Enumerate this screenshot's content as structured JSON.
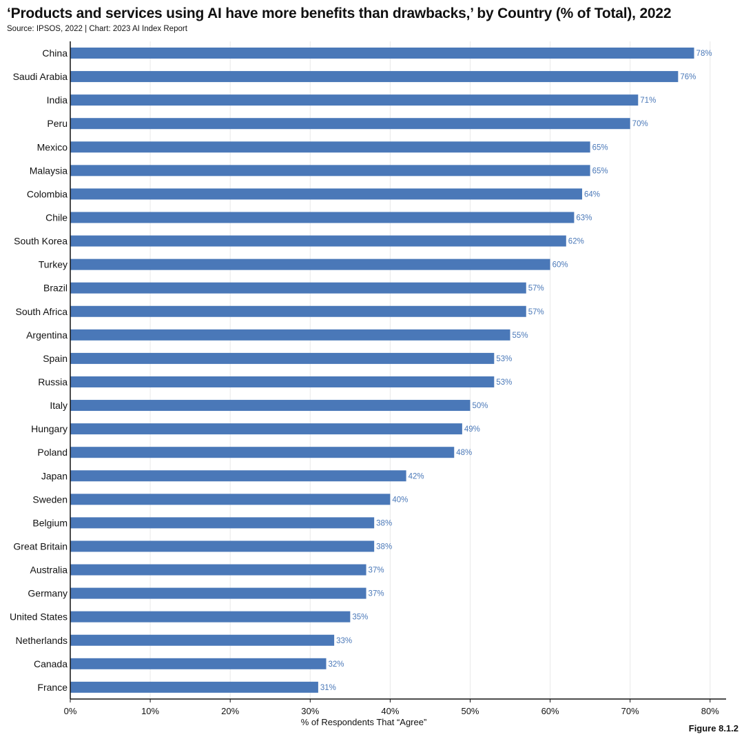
{
  "header": {
    "title": "‘Products and services using AI have more benefits than drawbacks,’ by Country (% of Total), 2022",
    "source": "Source: IPSOS, 2022 | Chart: 2023 AI Index Report"
  },
  "figure_label": "Figure 8.1.2",
  "colors": {
    "bar": "#4a78b8",
    "value_label": "#4a78b8",
    "grid": "#e8e8e8",
    "axis": "#111111"
  },
  "chart_data": {
    "type": "bar",
    "orientation": "horizontal",
    "categories": [
      "China",
      "Saudi Arabia",
      "India",
      "Peru",
      "Mexico",
      "Malaysia",
      "Colombia",
      "Chile",
      "South Korea",
      "Turkey",
      "Brazil",
      "South Africa",
      "Argentina",
      "Spain",
      "Russia",
      "Italy",
      "Hungary",
      "Poland",
      "Japan",
      "Sweden",
      "Belgium",
      "Great Britain",
      "Australia",
      "Germany",
      "United States",
      "Netherlands",
      "Canada",
      "France"
    ],
    "values": [
      78,
      76,
      71,
      70,
      65,
      65,
      64,
      63,
      62,
      60,
      57,
      57,
      55,
      53,
      53,
      50,
      49,
      48,
      42,
      40,
      38,
      38,
      37,
      37,
      35,
      33,
      32,
      31
    ],
    "value_labels": [
      "78%",
      "76%",
      "71%",
      "70%",
      "65%",
      "65%",
      "64%",
      "63%",
      "62%",
      "60%",
      "57%",
      "57%",
      "55%",
      "53%",
      "53%",
      "50%",
      "49%",
      "48%",
      "42%",
      "40%",
      "38%",
      "38%",
      "37%",
      "37%",
      "35%",
      "33%",
      "32%",
      "31%"
    ],
    "xlabel": "% of Respondents That “Agree”",
    "ylabel": "",
    "xlim": [
      0,
      82
    ],
    "xticks": [
      0,
      10,
      20,
      30,
      40,
      50,
      60,
      70,
      80
    ],
    "xtick_labels": [
      "0%",
      "10%",
      "20%",
      "30%",
      "40%",
      "50%",
      "60%",
      "70%",
      "80%"
    ],
    "grid": "vertical",
    "legend": "none"
  }
}
